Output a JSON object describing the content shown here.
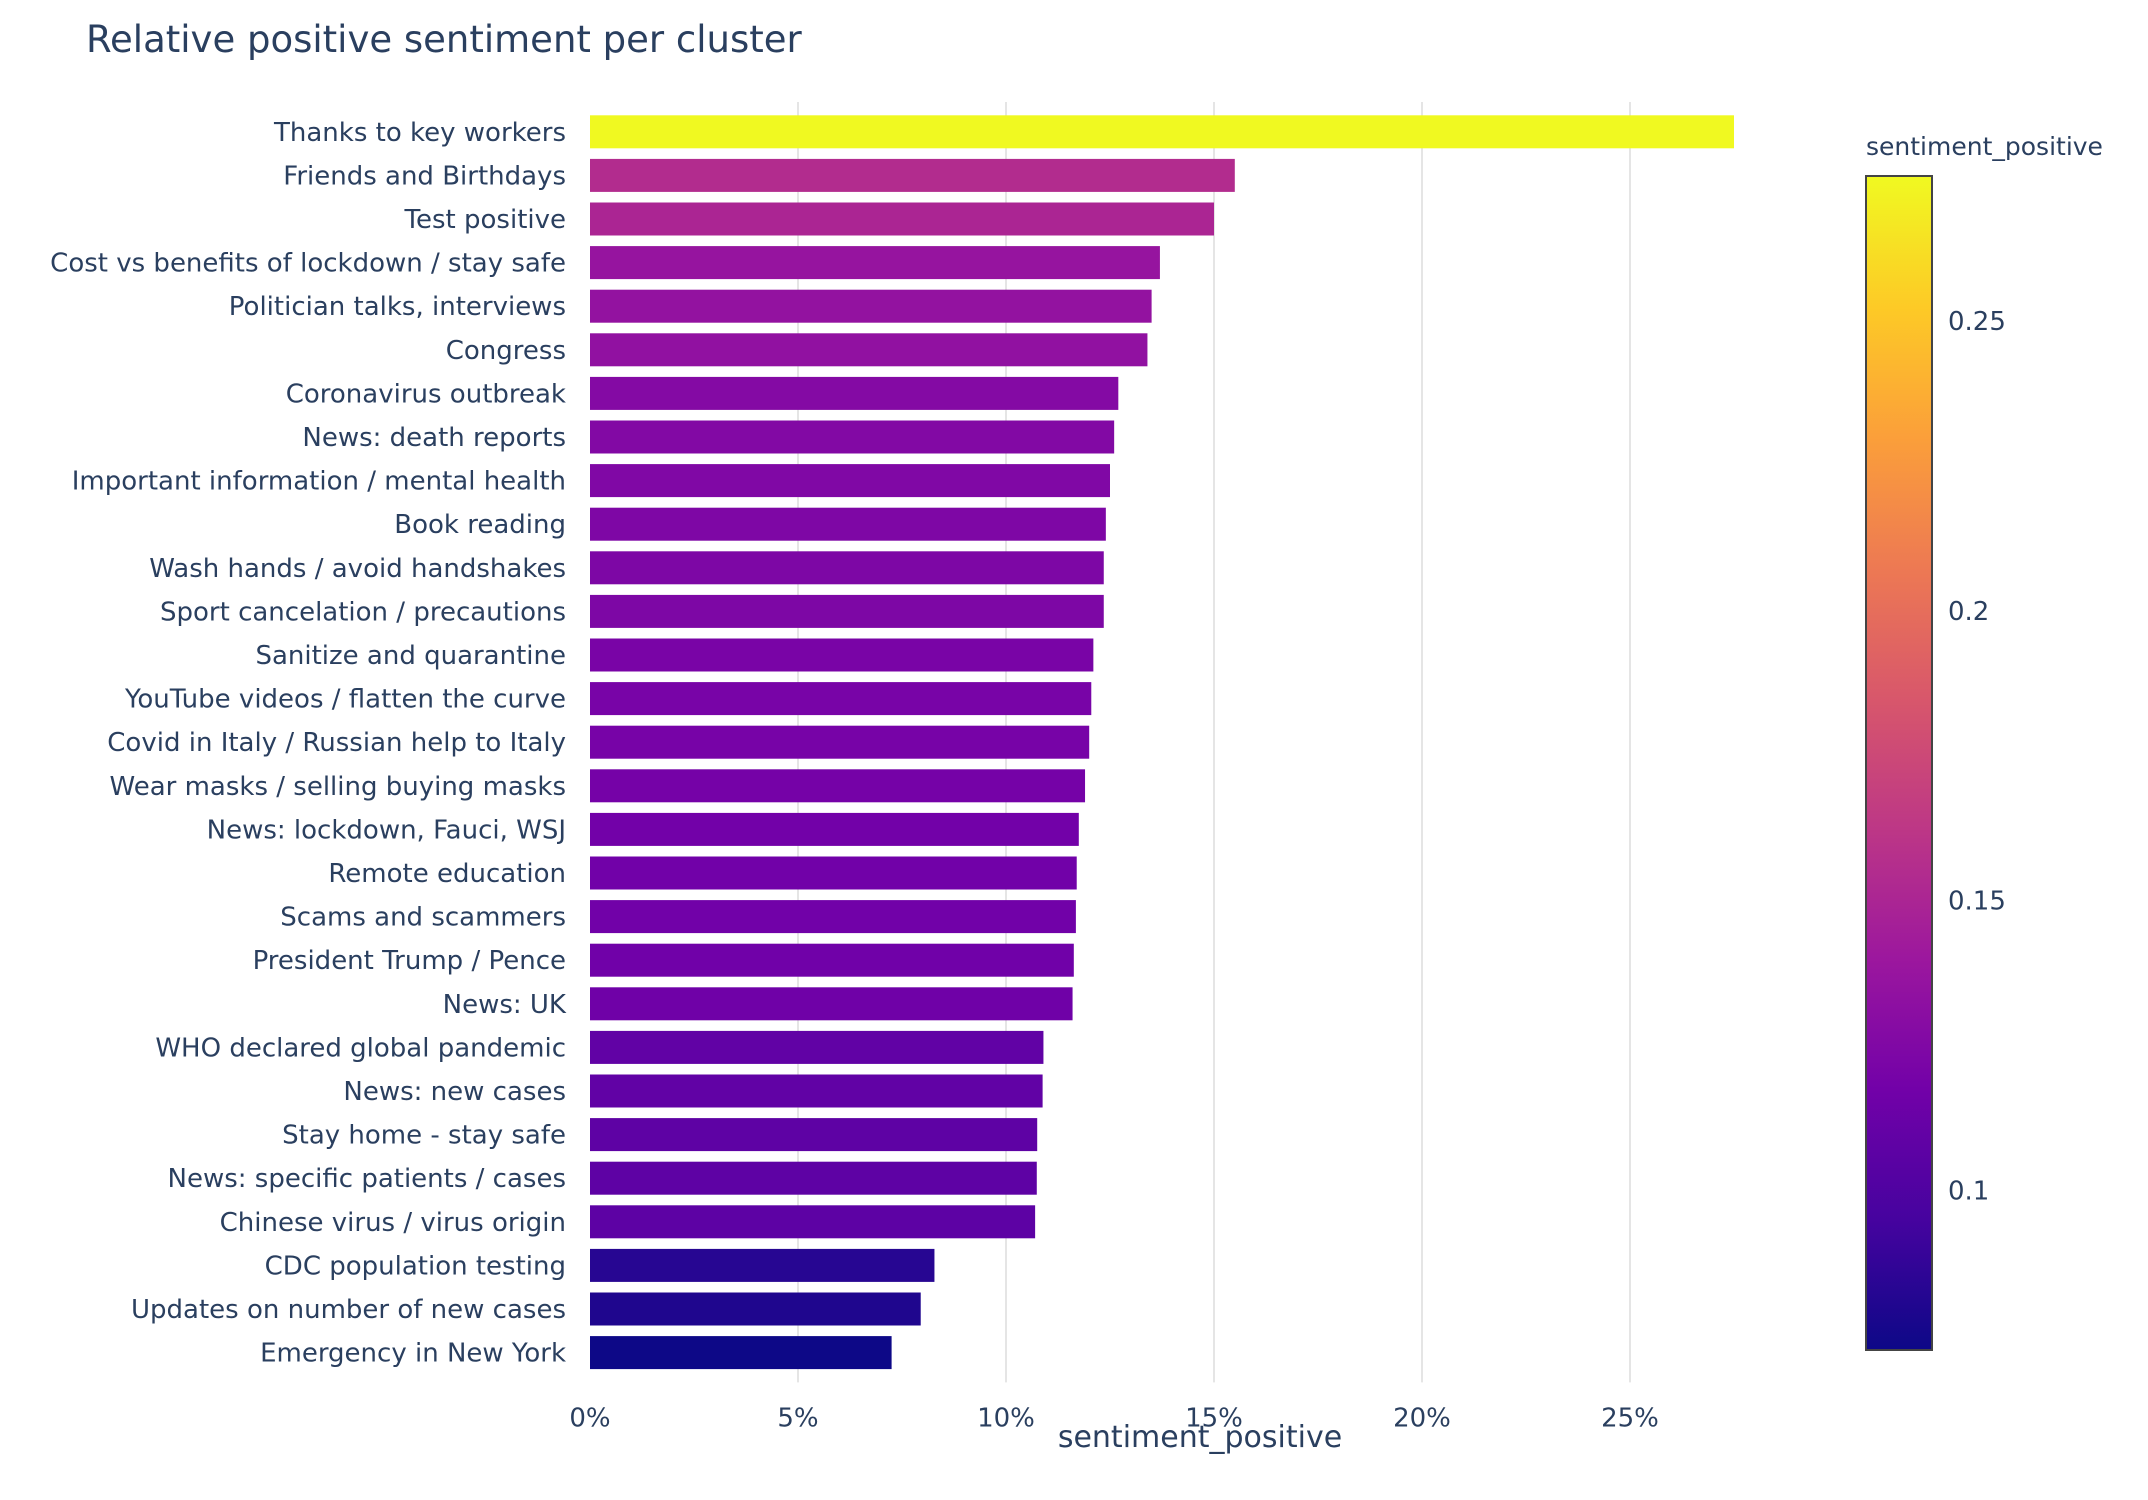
{
  "chart_data": {
    "type": "bar",
    "orientation": "horizontal",
    "title": "Relative positive sentiment per cluster",
    "xlabel": "sentiment_positive",
    "ylabel": "",
    "xlim": [
      0,
      0.28
    ],
    "x_ticks": [
      0,
      0.05,
      0.1,
      0.15,
      0.2,
      0.25
    ],
    "x_tick_labels": [
      "0%",
      "5%",
      "10%",
      "15%",
      "20%",
      "25%"
    ],
    "grid": "vertical gridlines on",
    "categories": [
      "Thanks to key workers",
      "Friends and Birthdays",
      "Test positive",
      "Cost vs benefits of lockdown / stay safe",
      "Politician talks, interviews",
      "Congress",
      "Coronavirus outbreak",
      "News: death reports",
      "Important information / mental health",
      "Book reading",
      "Wash hands / avoid handshakes",
      "Sport cancelation / precautions",
      "Sanitize and quarantine",
      "YouTube videos / flatten the curve",
      "Covid in Italy / Russian help to Italy",
      "Wear masks / selling buying masks",
      "News: lockdown, Fauci, WSJ",
      "Remote education",
      "Scams and scammers",
      "President Trump / Pence",
      "News: UK",
      "WHO declared global pandemic",
      "News: new cases",
      "Stay home - stay safe",
      "News: specific patients / cases",
      "Chinese virus / virus origin",
      "CDC population testing",
      "Updates on number of new cases",
      "Emergency in New York"
    ],
    "values": [
      0.275,
      0.155,
      0.15,
      0.137,
      0.135,
      0.134,
      0.127,
      0.126,
      0.125,
      0.124,
      0.1235,
      0.1235,
      0.121,
      0.1205,
      0.12,
      0.119,
      0.1175,
      0.117,
      0.1168,
      0.1163,
      0.116,
      0.109,
      0.1088,
      0.1075,
      0.1074,
      0.107,
      0.0828,
      0.0795,
      0.0725
    ],
    "colorbar": {
      "title": "sentiment_positive",
      "colorscale": "Plasma",
      "range": [
        0.0725,
        0.275
      ],
      "ticks": [
        0.1,
        0.15,
        0.2,
        0.25
      ],
      "tick_labels": [
        "0.1",
        "0.15",
        "0.2",
        "0.25"
      ]
    }
  }
}
